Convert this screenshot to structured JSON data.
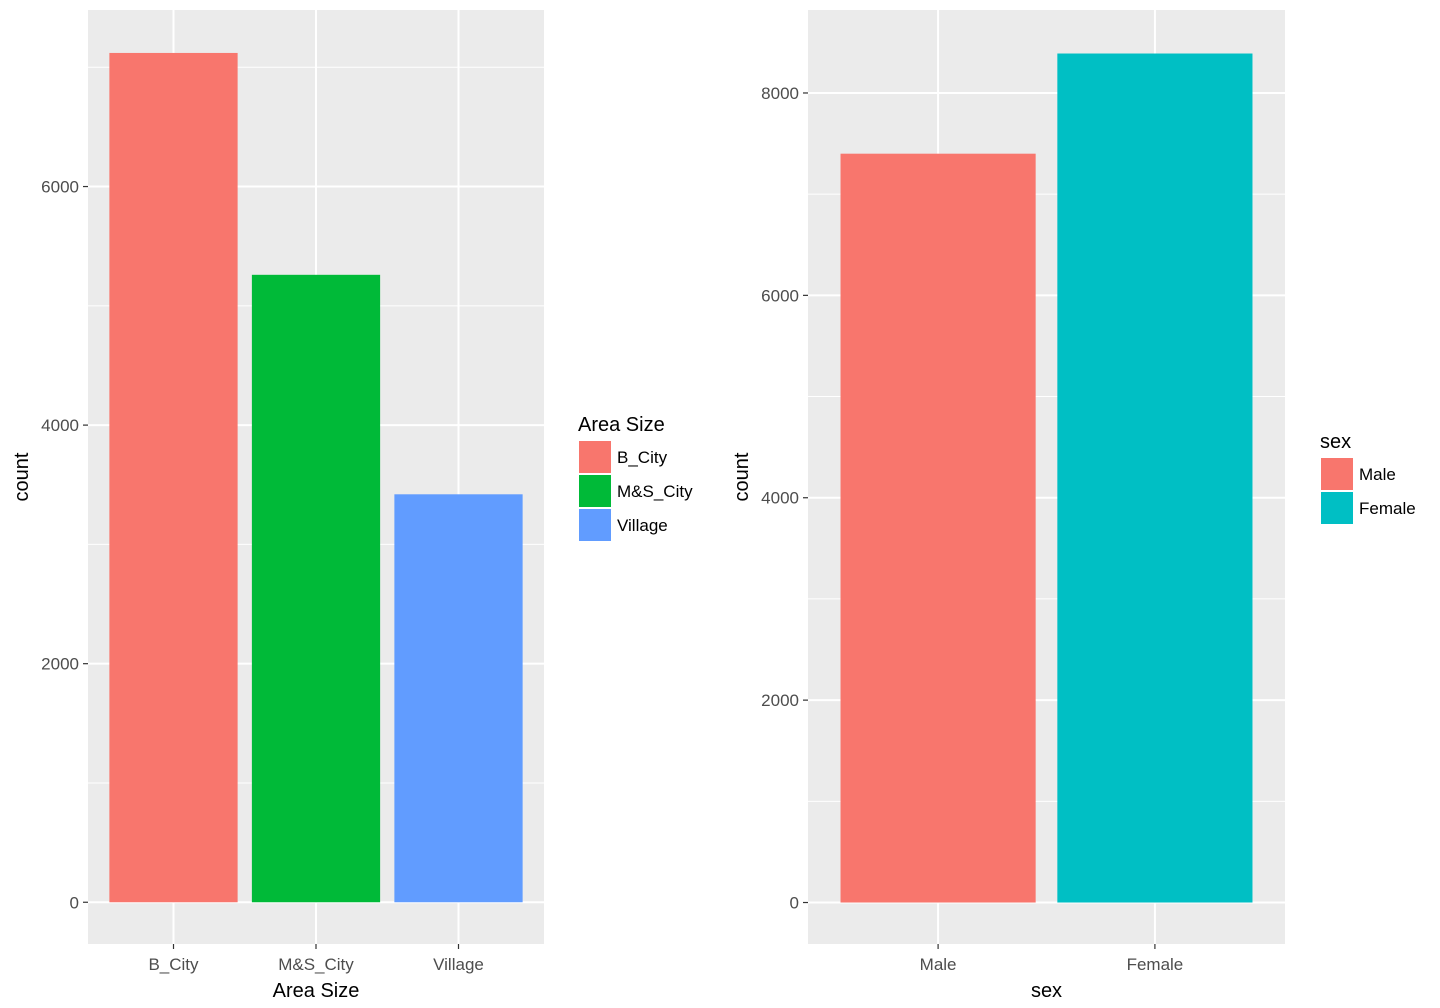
{
  "chart_data": [
    {
      "type": "bar",
      "categories": [
        "B_City",
        "M&S_City",
        "Village"
      ],
      "values": [
        7120,
        5260,
        3420
      ],
      "colors": [
        "#F8766D",
        "#00BA38",
        "#619CFF"
      ],
      "xlabel": "Area Size",
      "ylabel": "count",
      "ylim": [
        -350,
        7480
      ],
      "yticks": [
        0,
        2000,
        4000,
        6000
      ],
      "yticks_labels": [
        "0",
        "2000",
        "4000",
        "6000"
      ],
      "grid": true,
      "legend": {
        "title": "Area Size",
        "position": "right",
        "entries": [
          "B_City",
          "M&S_City",
          "Village"
        ]
      }
    },
    {
      "type": "bar",
      "categories": [
        "Male",
        "Female"
      ],
      "values": [
        7400,
        8390
      ],
      "colors": [
        "#F8766D",
        "#00BFC4"
      ],
      "xlabel": "sex",
      "ylabel": "count",
      "ylim": [
        -410,
        8820
      ],
      "yticks": [
        0,
        2000,
        4000,
        6000,
        8000
      ],
      "yticks_labels": [
        "0",
        "2000",
        "4000",
        "6000",
        "8000"
      ],
      "grid": true,
      "legend": {
        "title": "sex",
        "position": "right",
        "entries": [
          "Male",
          "Female"
        ]
      }
    }
  ]
}
